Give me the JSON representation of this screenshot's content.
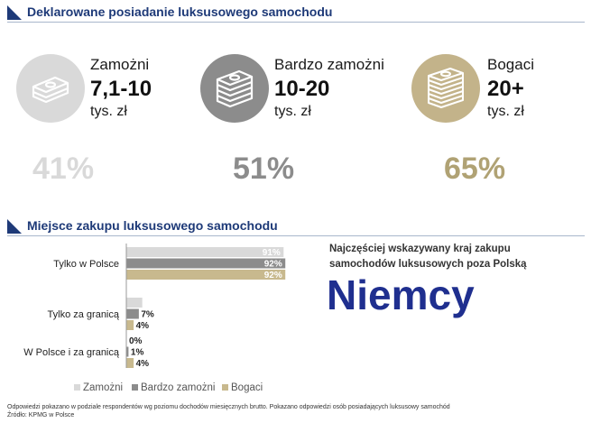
{
  "section1": {
    "title": "Deklarowane posiadanie luksusowego samochodu"
  },
  "groups": [
    {
      "label": "Zamożni",
      "range": "7,1-10",
      "unit": "tys. zł",
      "percent": "41%",
      "color": "#d9d9d9",
      "pct_color": "#d9d9d9",
      "icon": "banknote-stack-small-icon"
    },
    {
      "label": "Bardzo zamożni",
      "range": "10-20",
      "unit": "tys. zł",
      "percent": "51%",
      "color": "#8c8c8c",
      "pct_color": "#8c8c8c",
      "icon": "banknote-stack-medium-icon"
    },
    {
      "label": "Bogaci",
      "range": "20+",
      "unit": "tys. zł",
      "percent": "65%",
      "color": "#c3b38a",
      "pct_color": "#b0a274",
      "icon": "banknote-stack-large-icon"
    }
  ],
  "section2": {
    "title": "Miejsce zakupu luksusowego samochodu"
  },
  "callout": {
    "text": "Najczęściej wskazywany kraj zakupu samochodów luksusowych poza Polską",
    "country": "Niemcy"
  },
  "chart_data": {
    "type": "bar",
    "orientation": "horizontal",
    "categories": [
      "Tylko w Polsce",
      "Tylko za granicą",
      "W Polsce i za granicą"
    ],
    "series": [
      {
        "name": "Zamożni",
        "values": [
          91,
          9,
          0
        ],
        "labels": [
          "91%",
          "9%",
          "0%"
        ],
        "color": "#d9d9d9"
      },
      {
        "name": "Bardzo zamożni",
        "values": [
          92,
          7,
          1
        ],
        "labels": [
          "92%",
          "7%",
          "1%"
        ],
        "color": "#8c8c8c"
      },
      {
        "name": "Bogaci",
        "values": [
          92,
          4,
          4
        ],
        "labels": [
          "92%",
          "4%",
          "4%"
        ],
        "color": "#c8b98e"
      }
    ],
    "xlim": [
      0,
      100
    ],
    "grid": false,
    "legend": "bottom"
  },
  "footnotes": {
    "line1": "Odpowiedzi pokazano w podziale respondentów wg poziomu dochodów miesięcznych brutto. Pokazano odpowiedzi osób posiadających luksusowy samochód",
    "line2": "Źródło: KPMG w Polsce"
  }
}
